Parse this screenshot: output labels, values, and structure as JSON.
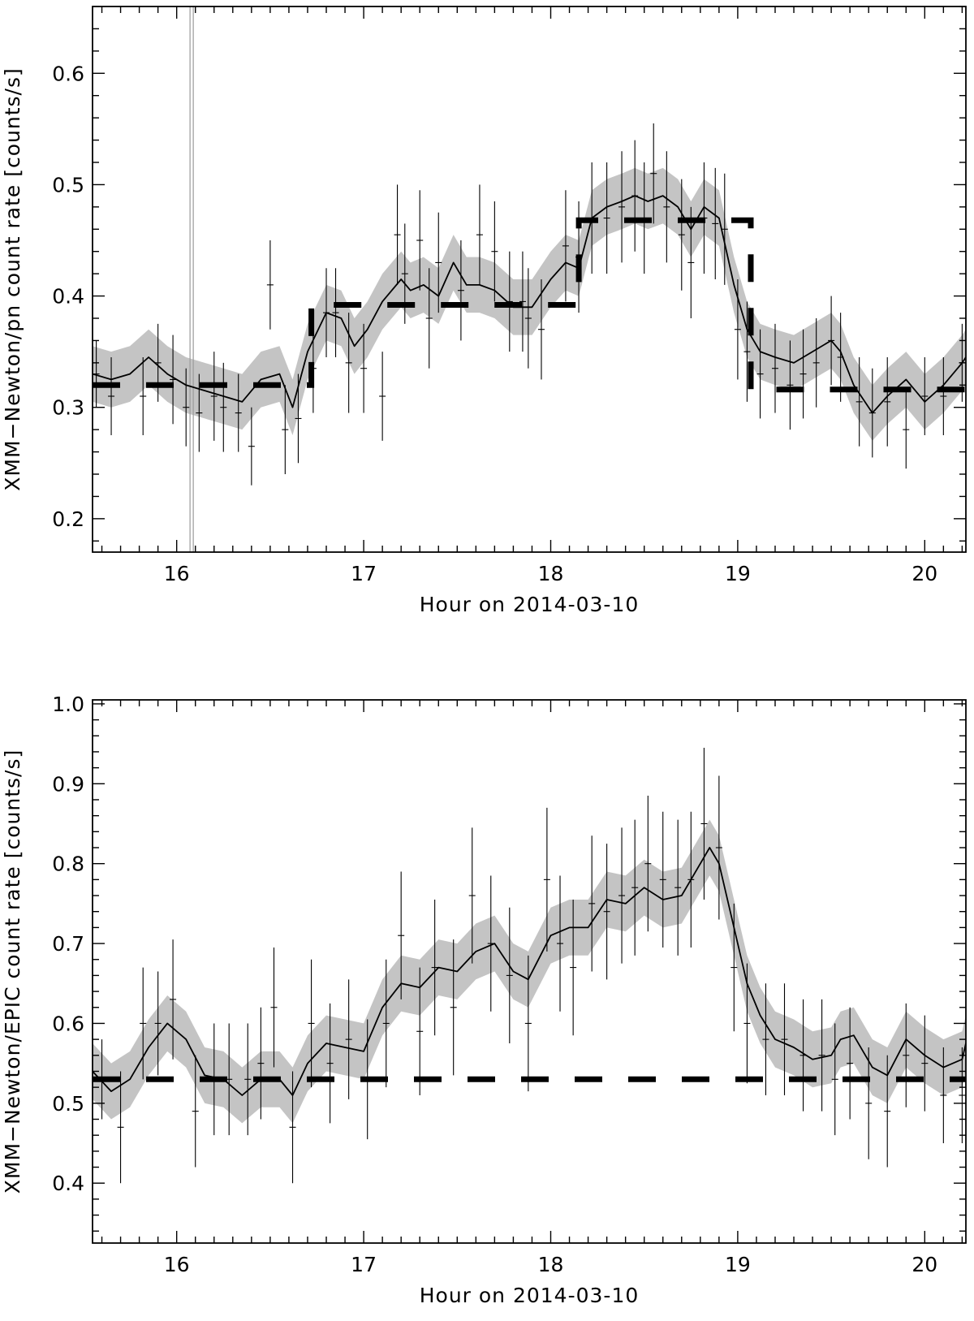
{
  "figure": {
    "panels": 2
  },
  "chart_data": [
    {
      "type": "line",
      "xlabel": "Hour on 2014-03-10",
      "ylabel": "XMM−Newton/pn count rate [counts/s]",
      "xlim": [
        15.55,
        20.22
      ],
      "ylim": [
        0.17,
        0.66
      ],
      "xticks": [
        16,
        17,
        18,
        19,
        20
      ],
      "xtick_labels": [
        "16",
        "17",
        "18",
        "19",
        "20"
      ],
      "yticks": [
        0.2,
        0.3,
        0.4,
        0.5,
        0.6
      ],
      "ytick_labels": [
        "0.2",
        "0.3",
        "0.4",
        "0.5",
        "0.6"
      ],
      "grid": false,
      "vertical_marker_x": 16.08,
      "series": [
        {
          "kind": "smoothed",
          "x": [
            15.55,
            15.65,
            15.75,
            15.85,
            15.95,
            16.05,
            16.15,
            16.25,
            16.35,
            16.45,
            16.55,
            16.62,
            16.7,
            16.8,
            16.88,
            16.95,
            17.02,
            17.1,
            17.2,
            17.25,
            17.32,
            17.4,
            17.48,
            17.55,
            17.62,
            17.7,
            17.8,
            17.9,
            18.0,
            18.08,
            18.15,
            18.22,
            18.3,
            18.38,
            18.45,
            18.52,
            18.6,
            18.68,
            18.75,
            18.82,
            18.9,
            18.98,
            19.05,
            19.12,
            19.2,
            19.3,
            19.4,
            19.5,
            19.55,
            19.62,
            19.72,
            19.8,
            19.9,
            20.0,
            20.1,
            20.2,
            20.22
          ],
          "y": [
            0.33,
            0.325,
            0.33,
            0.345,
            0.33,
            0.32,
            0.315,
            0.31,
            0.305,
            0.325,
            0.33,
            0.3,
            0.35,
            0.385,
            0.38,
            0.355,
            0.37,
            0.395,
            0.415,
            0.405,
            0.41,
            0.4,
            0.43,
            0.41,
            0.41,
            0.405,
            0.39,
            0.39,
            0.415,
            0.43,
            0.425,
            0.47,
            0.48,
            0.485,
            0.49,
            0.485,
            0.49,
            0.48,
            0.46,
            0.48,
            0.47,
            0.41,
            0.37,
            0.35,
            0.345,
            0.34,
            0.35,
            0.36,
            0.35,
            0.32,
            0.295,
            0.31,
            0.325,
            0.305,
            0.32,
            0.34,
            0.345
          ],
          "band_halfwidth": 0.025
        },
        {
          "kind": "binned",
          "x": [
            15.57,
            15.65,
            15.82,
            15.9,
            15.98,
            16.05,
            16.12,
            16.2,
            16.25,
            16.33,
            16.4,
            16.5,
            16.58,
            16.65,
            16.73,
            16.8,
            16.85,
            16.92,
            17.0,
            17.1,
            17.18,
            17.22,
            17.3,
            17.35,
            17.4,
            17.52,
            17.62,
            17.7,
            17.78,
            17.85,
            17.88,
            17.95,
            18.08,
            18.15,
            18.22,
            18.3,
            18.38,
            18.45,
            18.5,
            18.55,
            18.62,
            18.7,
            18.75,
            18.82,
            18.88,
            18.93,
            19.0,
            19.05,
            19.12,
            19.2,
            19.28,
            19.35,
            19.42,
            19.5,
            19.55,
            19.65,
            19.72,
            19.8,
            19.9,
            20.0,
            20.1,
            20.2
          ],
          "y": [
            0.33,
            0.31,
            0.31,
            0.34,
            0.325,
            0.3,
            0.295,
            0.31,
            0.3,
            0.295,
            0.265,
            0.41,
            0.28,
            0.29,
            0.335,
            0.385,
            0.385,
            0.34,
            0.335,
            0.31,
            0.455,
            0.42,
            0.45,
            0.38,
            0.43,
            0.405,
            0.455,
            0.44,
            0.395,
            0.395,
            0.38,
            0.37,
            0.445,
            0.435,
            0.47,
            0.47,
            0.48,
            0.49,
            0.47,
            0.51,
            0.48,
            0.455,
            0.43,
            0.47,
            0.465,
            0.46,
            0.37,
            0.35,
            0.33,
            0.335,
            0.32,
            0.33,
            0.34,
            0.36,
            0.345,
            0.305,
            0.295,
            0.305,
            0.28,
            0.31,
            0.31,
            0.34
          ],
          "err": [
            0.03,
            0.035,
            0.035,
            0.035,
            0.04,
            0.035,
            0.035,
            0.04,
            0.04,
            0.035,
            0.035,
            0.04,
            0.04,
            0.04,
            0.04,
            0.04,
            0.04,
            0.045,
            0.04,
            0.04,
            0.045,
            0.045,
            0.045,
            0.045,
            0.045,
            0.045,
            0.045,
            0.045,
            0.045,
            0.045,
            0.045,
            0.045,
            0.05,
            0.05,
            0.05,
            0.05,
            0.05,
            0.05,
            0.05,
            0.045,
            0.05,
            0.05,
            0.05,
            0.05,
            0.05,
            0.05,
            0.045,
            0.045,
            0.04,
            0.04,
            0.04,
            0.04,
            0.04,
            0.04,
            0.04,
            0.04,
            0.04,
            0.04,
            0.035,
            0.035,
            0.035,
            0.035
          ]
        },
        {
          "kind": "blocks",
          "style": "thick-dashed",
          "x": [
            15.55,
            16.72,
            16.72,
            18.15,
            18.15,
            19.07,
            19.07,
            20.22
          ],
          "y": [
            0.32,
            0.32,
            0.392,
            0.392,
            0.468,
            0.468,
            0.316,
            0.316
          ]
        }
      ]
    },
    {
      "type": "line",
      "xlabel": "Hour on 2014-03-10",
      "ylabel": "XMM−Newton/EPIC count rate [counts/s]",
      "xlim": [
        15.55,
        20.22
      ],
      "ylim": [
        0.325,
        1.005
      ],
      "xticks": [
        16,
        17,
        18,
        19,
        20
      ],
      "xtick_labels": [
        "16",
        "17",
        "18",
        "19",
        "20"
      ],
      "yticks": [
        0.4,
        0.5,
        0.6,
        0.7,
        0.8,
        0.9,
        1.0
      ],
      "ytick_labels": [
        "0.4",
        "0.5",
        "0.6",
        "0.7",
        "0.8",
        "0.9",
        "1.0"
      ],
      "grid": false,
      "series": [
        {
          "kind": "smoothed",
          "x": [
            15.55,
            15.65,
            15.75,
            15.85,
            15.95,
            16.05,
            16.15,
            16.25,
            16.35,
            16.45,
            16.55,
            16.62,
            16.7,
            16.8,
            16.9,
            17.0,
            17.1,
            17.2,
            17.3,
            17.4,
            17.5,
            17.6,
            17.7,
            17.8,
            17.88,
            18.0,
            18.1,
            18.2,
            18.3,
            18.4,
            18.5,
            18.6,
            18.7,
            18.8,
            18.85,
            18.9,
            18.98,
            19.05,
            19.12,
            19.2,
            19.3,
            19.4,
            19.5,
            19.55,
            19.62,
            19.72,
            19.8,
            19.9,
            20.0,
            20.1,
            20.2,
            20.22
          ],
          "y": [
            0.54,
            0.515,
            0.53,
            0.57,
            0.6,
            0.58,
            0.535,
            0.53,
            0.51,
            0.53,
            0.53,
            0.51,
            0.55,
            0.575,
            0.57,
            0.565,
            0.62,
            0.65,
            0.645,
            0.67,
            0.665,
            0.69,
            0.7,
            0.665,
            0.655,
            0.71,
            0.72,
            0.72,
            0.755,
            0.75,
            0.77,
            0.755,
            0.76,
            0.8,
            0.82,
            0.8,
            0.72,
            0.65,
            0.61,
            0.58,
            0.57,
            0.555,
            0.56,
            0.58,
            0.585,
            0.545,
            0.535,
            0.58,
            0.56,
            0.545,
            0.555,
            0.575
          ],
          "band_halfwidth": 0.035
        },
        {
          "kind": "binned",
          "x": [
            15.6,
            15.7,
            15.82,
            15.9,
            15.98,
            16.1,
            16.2,
            16.28,
            16.38,
            16.45,
            16.52,
            16.62,
            16.72,
            16.82,
            16.92,
            17.02,
            17.12,
            17.2,
            17.3,
            17.38,
            17.48,
            17.58,
            17.68,
            17.78,
            17.88,
            17.98,
            18.05,
            18.12,
            18.22,
            18.3,
            18.38,
            18.45,
            18.52,
            18.6,
            18.68,
            18.75,
            18.82,
            18.9,
            18.98,
            19.05,
            19.15,
            19.25,
            19.35,
            19.45,
            19.52,
            19.6,
            19.7,
            19.8,
            19.9,
            20.0,
            20.1,
            20.2
          ],
          "y": [
            0.53,
            0.47,
            0.6,
            0.6,
            0.63,
            0.49,
            0.53,
            0.53,
            0.53,
            0.55,
            0.62,
            0.47,
            0.6,
            0.55,
            0.58,
            0.53,
            0.6,
            0.71,
            0.59,
            0.67,
            0.62,
            0.76,
            0.7,
            0.66,
            0.6,
            0.78,
            0.7,
            0.67,
            0.75,
            0.74,
            0.76,
            0.77,
            0.8,
            0.78,
            0.77,
            0.78,
            0.85,
            0.82,
            0.67,
            0.6,
            0.58,
            0.58,
            0.56,
            0.56,
            0.53,
            0.55,
            0.5,
            0.49,
            0.56,
            0.55,
            0.51,
            0.51
          ],
          "err": [
            0.05,
            0.07,
            0.07,
            0.065,
            0.075,
            0.07,
            0.07,
            0.07,
            0.07,
            0.07,
            0.075,
            0.07,
            0.08,
            0.075,
            0.075,
            0.075,
            0.08,
            0.08,
            0.08,
            0.085,
            0.085,
            0.085,
            0.085,
            0.085,
            0.085,
            0.09,
            0.085,
            0.085,
            0.085,
            0.085,
            0.085,
            0.085,
            0.085,
            0.085,
            0.085,
            0.085,
            0.095,
            0.09,
            0.08,
            0.075,
            0.07,
            0.07,
            0.07,
            0.07,
            0.07,
            0.07,
            0.07,
            0.07,
            0.065,
            0.06,
            0.06,
            0.06
          ]
        },
        {
          "kind": "blocks",
          "style": "thick-dashed",
          "x": [
            15.55,
            20.22
          ],
          "y": [
            0.53,
            0.53
          ]
        }
      ]
    }
  ]
}
